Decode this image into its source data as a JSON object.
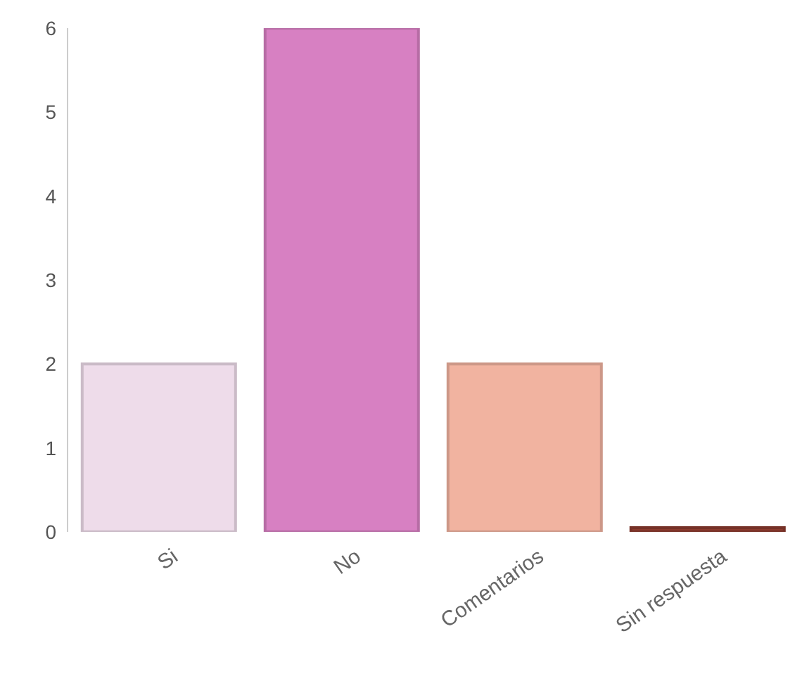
{
  "chart_data": {
    "type": "bar",
    "categories": [
      "Si",
      "No",
      "Comentarios",
      "Sin respuesta"
    ],
    "values": [
      2,
      6,
      2,
      0
    ],
    "colors": [
      "#eedcea",
      "#d780c2",
      "#f1b3a0",
      "#8b3a2e"
    ],
    "ylim": [
      0,
      6
    ],
    "yticks": [
      0,
      1,
      2,
      3,
      4,
      5,
      6
    ],
    "grid": false
  }
}
